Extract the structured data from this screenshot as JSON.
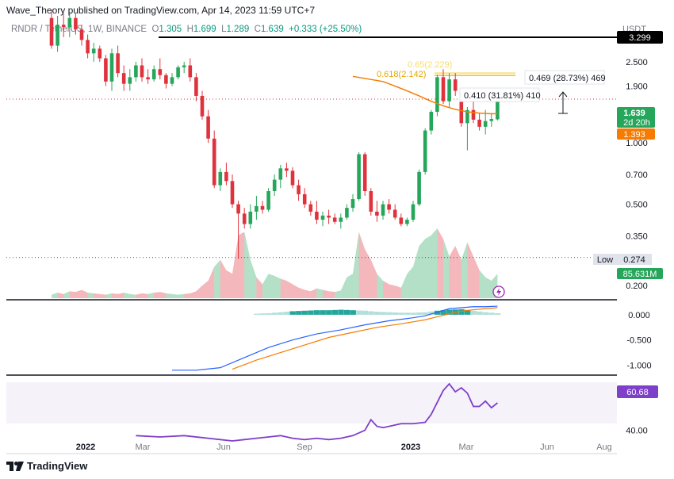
{
  "header": {
    "publisher": "Wave_Theory published on TradingView.com, Apr 14, 2023 11:59 UTC+7"
  },
  "legend": {
    "symbol": "RNDR / TetherUS, 1W, BINANCE",
    "o_label": "O",
    "o": "1.305",
    "h_label": "H",
    "h": "1.699",
    "l_label": "L",
    "l": "1.289",
    "c_label": "C",
    "c": "1.639",
    "change": "+0.333 (+25.50%)"
  },
  "footer": {
    "brand": "TradingView"
  },
  "colors": {
    "up": "#26a65b",
    "down": "#e0323c",
    "ema": "#f57c00",
    "macd": "#2962ff",
    "signal": "#f57c00",
    "rsi": "#7e3fc9",
    "fib": "#f2c200",
    "resistance": "#000000"
  },
  "chart_data": [
    {
      "type": "candlestick",
      "title": "RNDR / TetherUS, 1W, BINANCE",
      "yunit": "USDT",
      "yscale": "log",
      "ylim": [
        0.17,
        4.2
      ],
      "x_ticks": [
        "2022",
        "Mar",
        "Jun",
        "Sep",
        "2023",
        "Mar",
        "Jun",
        "Aug"
      ],
      "y_ticks": [
        "2.500",
        "1.900",
        "1.000",
        "0.700",
        "0.500",
        "0.350",
        "0.200"
      ],
      "price_labels": {
        "resistance": "3.299",
        "last": "1.639",
        "countdown": "2d 20h",
        "ema": "1.393",
        "low_label": "Low",
        "low": "0.274",
        "volume": "85.631M"
      },
      "annotations": {
        "fib_label": "0.618(2.142)",
        "fib_label_faded": "0.65(2.229)",
        "measure1": "0.410 (31.81%) 410",
        "measure2": "0.469 (28.73%) 469"
      },
      "candles": [
        [
          4.1,
          4.5,
          2.9,
          3.0
        ],
        [
          3.0,
          4.2,
          2.8,
          3.8
        ],
        [
          3.8,
          4.3,
          3.3,
          3.7
        ],
        [
          3.7,
          4.4,
          3.3,
          4.1
        ],
        [
          4.1,
          4.3,
          3.4,
          3.6
        ],
        [
          3.6,
          3.8,
          3.0,
          3.2
        ],
        [
          3.2,
          3.4,
          2.6,
          2.75
        ],
        [
          2.75,
          3.1,
          2.5,
          2.9
        ],
        [
          2.9,
          3.0,
          2.5,
          2.6
        ],
        [
          2.6,
          2.7,
          1.9,
          2.0
        ],
        [
          2.0,
          2.9,
          1.8,
          2.75
        ],
        [
          2.75,
          3.0,
          2.1,
          2.2
        ],
        [
          2.2,
          2.4,
          1.8,
          1.95
        ],
        [
          1.95,
          2.3,
          1.8,
          2.1
        ],
        [
          2.1,
          2.5,
          2.0,
          2.4
        ],
        [
          2.4,
          2.6,
          2.0,
          2.1
        ],
        [
          2.1,
          2.3,
          1.95,
          2.05
        ],
        [
          2.05,
          2.4,
          2.0,
          2.3
        ],
        [
          2.3,
          2.6,
          2.05,
          2.15
        ],
        [
          2.15,
          2.2,
          1.85,
          1.95
        ],
        [
          1.95,
          2.2,
          1.9,
          2.1
        ],
        [
          2.1,
          2.4,
          2.05,
          2.35
        ],
        [
          2.35,
          2.5,
          2.2,
          2.4
        ],
        [
          2.4,
          2.6,
          2.0,
          2.1
        ],
        [
          2.1,
          2.2,
          1.6,
          1.7
        ],
        [
          1.7,
          1.8,
          1.3,
          1.35
        ],
        [
          1.35,
          1.45,
          1.0,
          1.05
        ],
        [
          1.05,
          1.15,
          0.6,
          0.62
        ],
        [
          0.62,
          0.75,
          0.58,
          0.72
        ],
        [
          0.72,
          0.8,
          0.62,
          0.65
        ],
        [
          0.65,
          0.7,
          0.48,
          0.5
        ],
        [
          0.5,
          0.52,
          0.27,
          0.45
        ],
        [
          0.45,
          0.48,
          0.38,
          0.4
        ],
        [
          0.4,
          0.5,
          0.38,
          0.46
        ],
        [
          0.46,
          0.55,
          0.42,
          0.49
        ],
        [
          0.49,
          0.52,
          0.45,
          0.47
        ],
        [
          0.47,
          0.6,
          0.46,
          0.58
        ],
        [
          0.58,
          0.7,
          0.55,
          0.66
        ],
        [
          0.66,
          0.78,
          0.6,
          0.75
        ],
        [
          0.75,
          0.8,
          0.68,
          0.73
        ],
        [
          0.73,
          0.76,
          0.6,
          0.62
        ],
        [
          0.62,
          0.66,
          0.52,
          0.56
        ],
        [
          0.56,
          0.6,
          0.48,
          0.5
        ],
        [
          0.5,
          0.52,
          0.44,
          0.46
        ],
        [
          0.46,
          0.52,
          0.4,
          0.42
        ],
        [
          0.42,
          0.46,
          0.39,
          0.44
        ],
        [
          0.44,
          0.47,
          0.4,
          0.43
        ],
        [
          0.43,
          0.45,
          0.4,
          0.41
        ],
        [
          0.41,
          0.45,
          0.38,
          0.43
        ],
        [
          0.43,
          0.5,
          0.42,
          0.48
        ],
        [
          0.48,
          0.56,
          0.46,
          0.53
        ],
        [
          0.53,
          0.9,
          0.52,
          0.88
        ],
        [
          0.88,
          0.9,
          0.55,
          0.58
        ],
        [
          0.58,
          0.6,
          0.44,
          0.46
        ],
        [
          0.46,
          0.52,
          0.41,
          0.44
        ],
        [
          0.44,
          0.52,
          0.42,
          0.5
        ],
        [
          0.5,
          0.53,
          0.45,
          0.47
        ],
        [
          0.47,
          0.5,
          0.42,
          0.43
        ],
        [
          0.43,
          0.45,
          0.39,
          0.4
        ],
        [
          0.4,
          0.43,
          0.39,
          0.42
        ],
        [
          0.42,
          0.52,
          0.41,
          0.5
        ],
        [
          0.5,
          0.74,
          0.49,
          0.72
        ],
        [
          0.72,
          1.18,
          0.7,
          1.15
        ],
        [
          1.15,
          1.45,
          1.1,
          1.42
        ],
        [
          1.42,
          2.16,
          1.35,
          2.1
        ],
        [
          2.1,
          2.3,
          1.55,
          1.6
        ],
        [
          1.6,
          2.2,
          1.5,
          2.05
        ],
        [
          2.05,
          2.2,
          1.7,
          1.8
        ],
        [
          1.8,
          1.85,
          1.2,
          1.25
        ],
        [
          1.25,
          1.5,
          0.92,
          1.45
        ],
        [
          1.45,
          1.6,
          1.25,
          1.3
        ],
        [
          1.3,
          1.4,
          1.15,
          1.2
        ],
        [
          1.2,
          1.45,
          1.1,
          1.28
        ],
        [
          1.28,
          1.4,
          1.2,
          1.31
        ],
        [
          1.305,
          1.699,
          1.289,
          1.639
        ]
      ],
      "ema": [
        [
          55,
          2.0
        ],
        [
          57,
          1.9
        ],
        [
          59,
          1.8
        ],
        [
          61,
          1.7
        ],
        [
          63,
          1.6
        ],
        [
          65,
          1.52
        ],
        [
          67,
          1.46
        ],
        [
          69,
          1.42
        ],
        [
          71,
          1.4
        ],
        [
          73,
          1.39
        ],
        [
          74,
          1.393
        ]
      ],
      "resistance_level": 3.299,
      "low_level": 0.274,
      "fib_level": 2.142
    },
    {
      "type": "area",
      "name": "Volume",
      "values": [
        0.05,
        0.08,
        0.06,
        0.1,
        0.09,
        0.12,
        0.08,
        0.07,
        0.06,
        0.05,
        0.07,
        0.06,
        0.08,
        0.06,
        0.05,
        0.07,
        0.06,
        0.08,
        0.09,
        0.07,
        0.06,
        0.05,
        0.06,
        0.07,
        0.1,
        0.18,
        0.25,
        0.45,
        0.55,
        0.4,
        0.35,
        0.9,
        0.95,
        0.55,
        0.3,
        0.2,
        0.35,
        0.32,
        0.28,
        0.25,
        0.2,
        0.15,
        0.12,
        0.1,
        0.14,
        0.12,
        0.1,
        0.09,
        0.11,
        0.3,
        0.35,
        0.95,
        0.7,
        0.55,
        0.35,
        0.25,
        0.2,
        0.18,
        0.15,
        0.35,
        0.45,
        0.75,
        0.85,
        0.9,
        1.0,
        0.85,
        0.6,
        0.75,
        0.55,
        0.8,
        0.6,
        0.4,
        0.3,
        0.25,
        0.35
      ]
    },
    {
      "type": "bar+line",
      "name": "MACD",
      "y_ticks": [
        "0.000",
        "-0.500",
        "-1.000"
      ],
      "ylim": [
        -1.15,
        0.25
      ],
      "histogram": [
        [
          34,
          0.02
        ],
        [
          36,
          0.03
        ],
        [
          38,
          0.05
        ],
        [
          40,
          0.07
        ],
        [
          42,
          0.08
        ],
        [
          44,
          0.09
        ],
        [
          46,
          0.09
        ],
        [
          48,
          0.1
        ],
        [
          50,
          0.09
        ],
        [
          52,
          0.08
        ],
        [
          54,
          0.06
        ],
        [
          56,
          0.05
        ],
        [
          58,
          0.04
        ],
        [
          60,
          0.04
        ],
        [
          62,
          0.05
        ],
        [
          64,
          0.08
        ],
        [
          66,
          0.1
        ],
        [
          68,
          0.11
        ],
        [
          70,
          0.08
        ],
        [
          72,
          0.05
        ],
        [
          74,
          0.03
        ]
      ],
      "macd": [
        [
          20,
          -1.1
        ],
        [
          24,
          -1.1
        ],
        [
          28,
          -1.05
        ],
        [
          32,
          -0.85
        ],
        [
          36,
          -0.65
        ],
        [
          40,
          -0.5
        ],
        [
          44,
          -0.38
        ],
        [
          48,
          -0.3
        ],
        [
          52,
          -0.2
        ],
        [
          56,
          -0.12
        ],
        [
          60,
          -0.06
        ],
        [
          62,
          -0.02
        ],
        [
          64,
          0.05
        ],
        [
          66,
          0.12
        ],
        [
          68,
          0.14
        ],
        [
          70,
          0.16
        ],
        [
          72,
          0.16
        ],
        [
          74,
          0.17
        ]
      ],
      "signal": [
        [
          30,
          -1.08
        ],
        [
          34,
          -0.9
        ],
        [
          38,
          -0.75
        ],
        [
          42,
          -0.6
        ],
        [
          46,
          -0.45
        ],
        [
          50,
          -0.35
        ],
        [
          54,
          -0.25
        ],
        [
          58,
          -0.18
        ],
        [
          60,
          -0.14
        ],
        [
          62,
          -0.1
        ],
        [
          64,
          -0.04
        ],
        [
          66,
          0.02
        ],
        [
          68,
          0.07
        ],
        [
          70,
          0.1
        ],
        [
          72,
          0.12
        ],
        [
          74,
          0.14
        ]
      ]
    },
    {
      "type": "line",
      "name": "RSI",
      "y_ticks": [
        "40.00"
      ],
      "ylim": [
        32,
        78
      ],
      "last": "60.68",
      "values": [
        [
          14,
          36
        ],
        [
          18,
          35
        ],
        [
          22,
          36
        ],
        [
          26,
          34
        ],
        [
          28,
          33
        ],
        [
          30,
          32
        ],
        [
          32,
          33
        ],
        [
          34,
          34
        ],
        [
          36,
          35
        ],
        [
          38,
          36
        ],
        [
          40,
          34
        ],
        [
          42,
          33
        ],
        [
          44,
          34
        ],
        [
          46,
          33
        ],
        [
          48,
          34
        ],
        [
          50,
          36
        ],
        [
          52,
          40
        ],
        [
          53,
          48
        ],
        [
          54,
          43
        ],
        [
          55,
          42
        ],
        [
          56,
          43
        ],
        [
          58,
          45
        ],
        [
          60,
          45
        ],
        [
          62,
          46
        ],
        [
          63,
          52
        ],
        [
          64,
          61
        ],
        [
          65,
          70
        ],
        [
          66,
          75
        ],
        [
          67,
          69
        ],
        [
          68,
          72
        ],
        [
          69,
          68
        ],
        [
          70,
          58
        ],
        [
          71,
          58
        ],
        [
          72,
          62
        ],
        [
          73,
          57
        ],
        [
          74,
          60.68
        ]
      ]
    }
  ]
}
